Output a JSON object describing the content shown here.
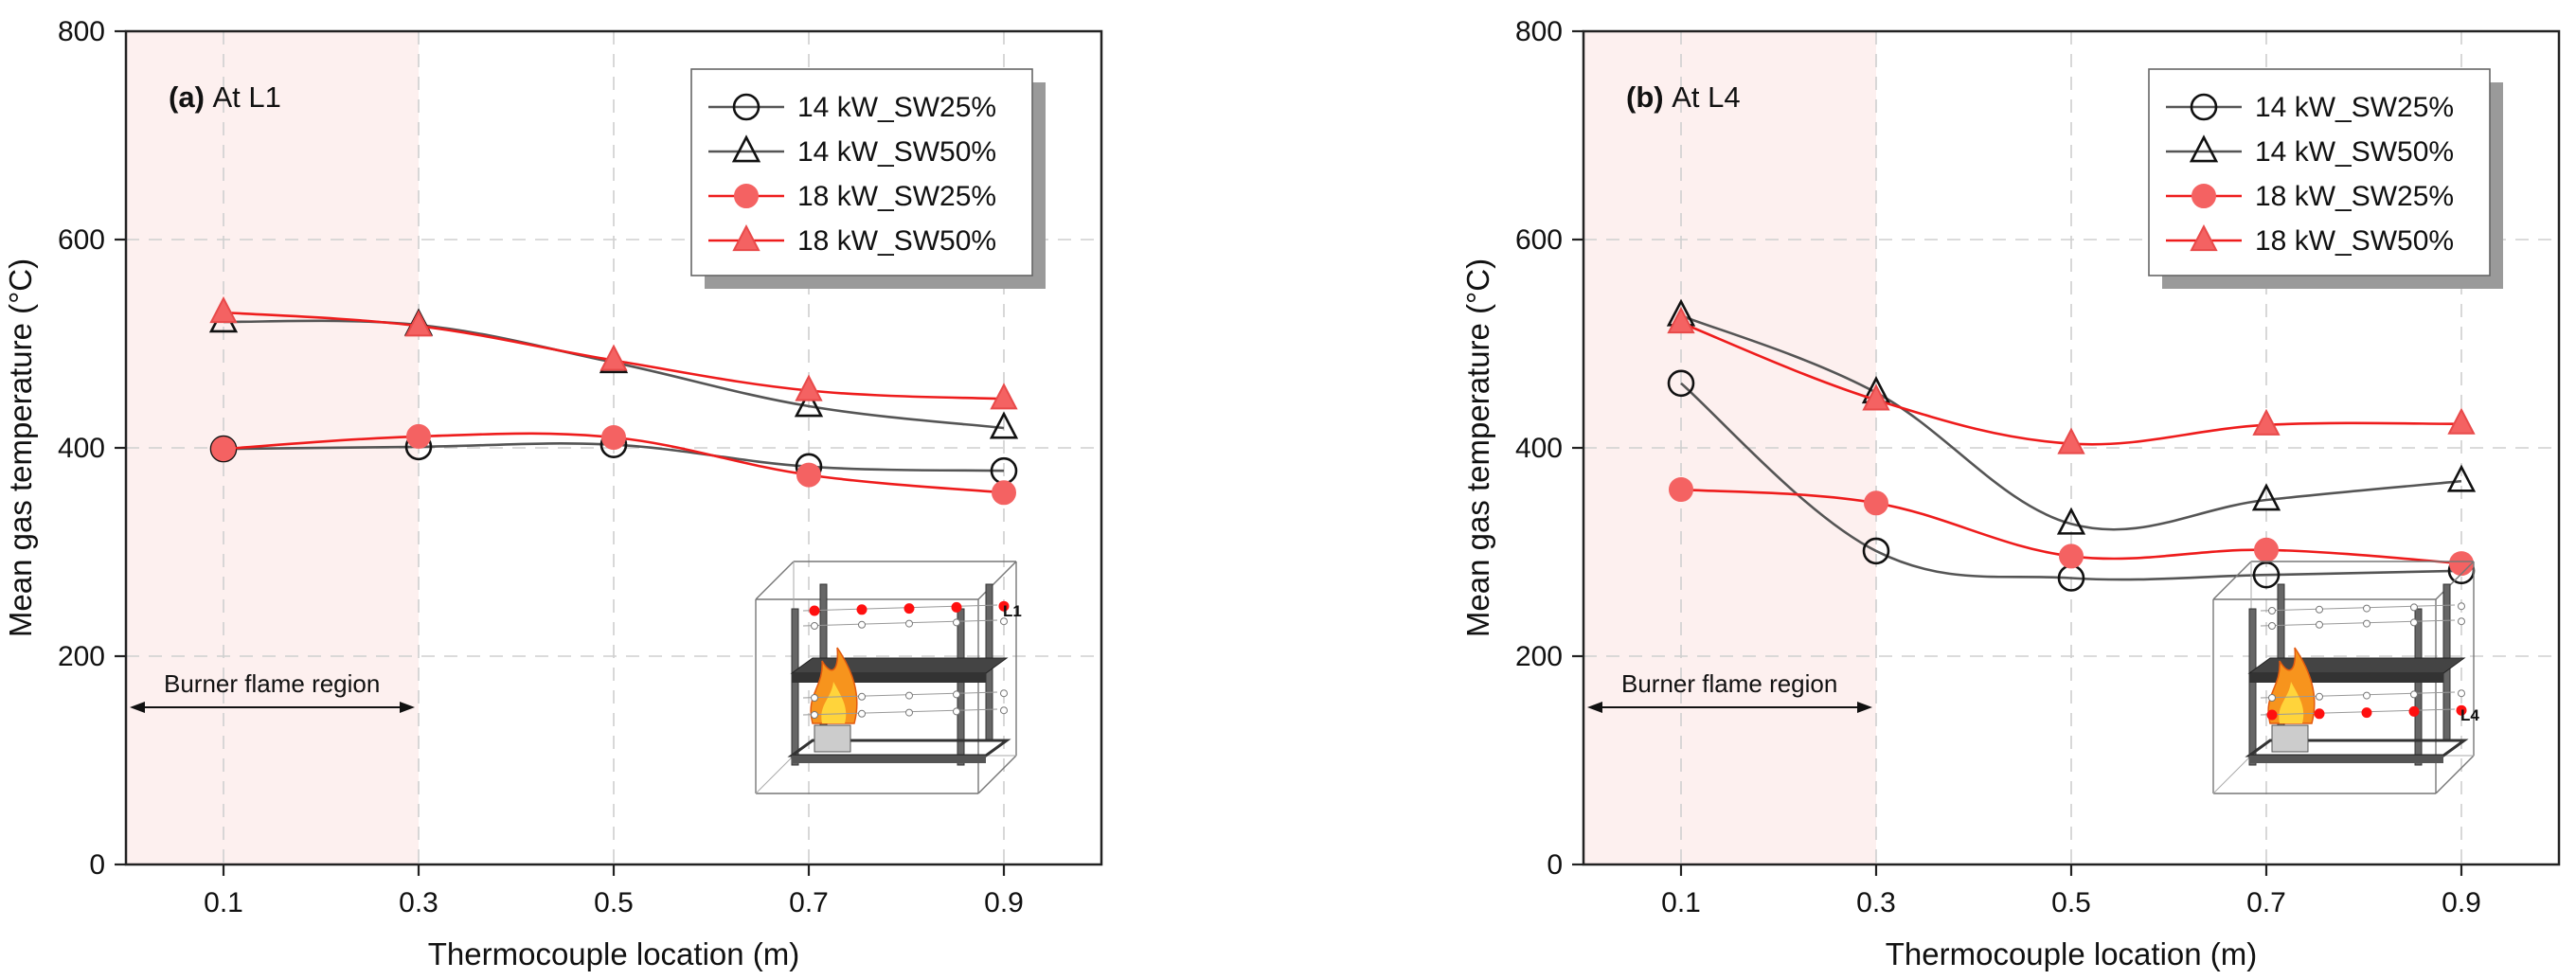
{
  "chart_data": [
    {
      "type": "line",
      "panel_label": "(a)",
      "panel_title": "At L1",
      "xlabel": "Thermocouple location (m)",
      "ylabel": "Mean gas temperature (°C)",
      "x": [
        0.1,
        0.3,
        0.5,
        0.7,
        0.9
      ],
      "xticks": [
        "0.1",
        "0.3",
        "0.5",
        "0.7",
        "0.9"
      ],
      "yticks": [
        "0",
        "200",
        "400",
        "600",
        "800"
      ],
      "xlim": [
        0.0,
        1.0
      ],
      "ylim": [
        0,
        800
      ],
      "grid": true,
      "legend_position": "top-right",
      "region": {
        "label": "Burner flame region",
        "x_range": [
          0.0,
          0.3
        ]
      },
      "inset_marker_label": "L1",
      "series": [
        {
          "name": "14 kW_SW25%",
          "marker": "circle-open",
          "color": "#555555",
          "values": [
            399,
            401,
            403,
            382,
            378
          ]
        },
        {
          "name": "14 kW_SW50%",
          "marker": "triangle-open",
          "color": "#555555",
          "values": [
            521,
            518,
            482,
            440,
            419
          ]
        },
        {
          "name": "18 kW_SW25%",
          "marker": "circle-filled",
          "color": "#ee1c1c",
          "values": [
            399,
            411,
            410,
            374,
            357
          ]
        },
        {
          "name": "18 kW_SW50%",
          "marker": "triangle-filled",
          "color": "#ee1c1c",
          "values": [
            530,
            517,
            484,
            455,
            447
          ]
        }
      ]
    },
    {
      "type": "line",
      "panel_label": "(b)",
      "panel_title": "At L4",
      "xlabel": "Thermocouple location (m)",
      "ylabel": "Mean gas temperature (°C)",
      "x": [
        0.1,
        0.3,
        0.5,
        0.7,
        0.9
      ],
      "xticks": [
        "0.1",
        "0.3",
        "0.5",
        "0.7",
        "0.9"
      ],
      "yticks": [
        "0",
        "200",
        "400",
        "600",
        "800"
      ],
      "xlim": [
        0.0,
        1.0
      ],
      "ylim": [
        0,
        800
      ],
      "grid": true,
      "legend_position": "top-right",
      "region": {
        "label": "Burner flame region",
        "x_range": [
          0.0,
          0.3
        ]
      },
      "inset_marker_label": "L4",
      "series": [
        {
          "name": "14 kW_SW25%",
          "marker": "circle-open",
          "color": "#555555",
          "values": [
            462,
            301,
            275,
            278,
            282
          ]
        },
        {
          "name": "14 kW_SW50%",
          "marker": "triangle-open",
          "color": "#555555",
          "values": [
            527,
            453,
            327,
            350,
            368
          ]
        },
        {
          "name": "18 kW_SW25%",
          "marker": "circle-filled",
          "color": "#ee1c1c",
          "values": [
            360,
            347,
            296,
            302,
            289
          ]
        },
        {
          "name": "18 kW_SW50%",
          "marker": "triangle-filled",
          "color": "#ee1c1c",
          "values": [
            520,
            446,
            404,
            422,
            423
          ]
        }
      ]
    }
  ]
}
